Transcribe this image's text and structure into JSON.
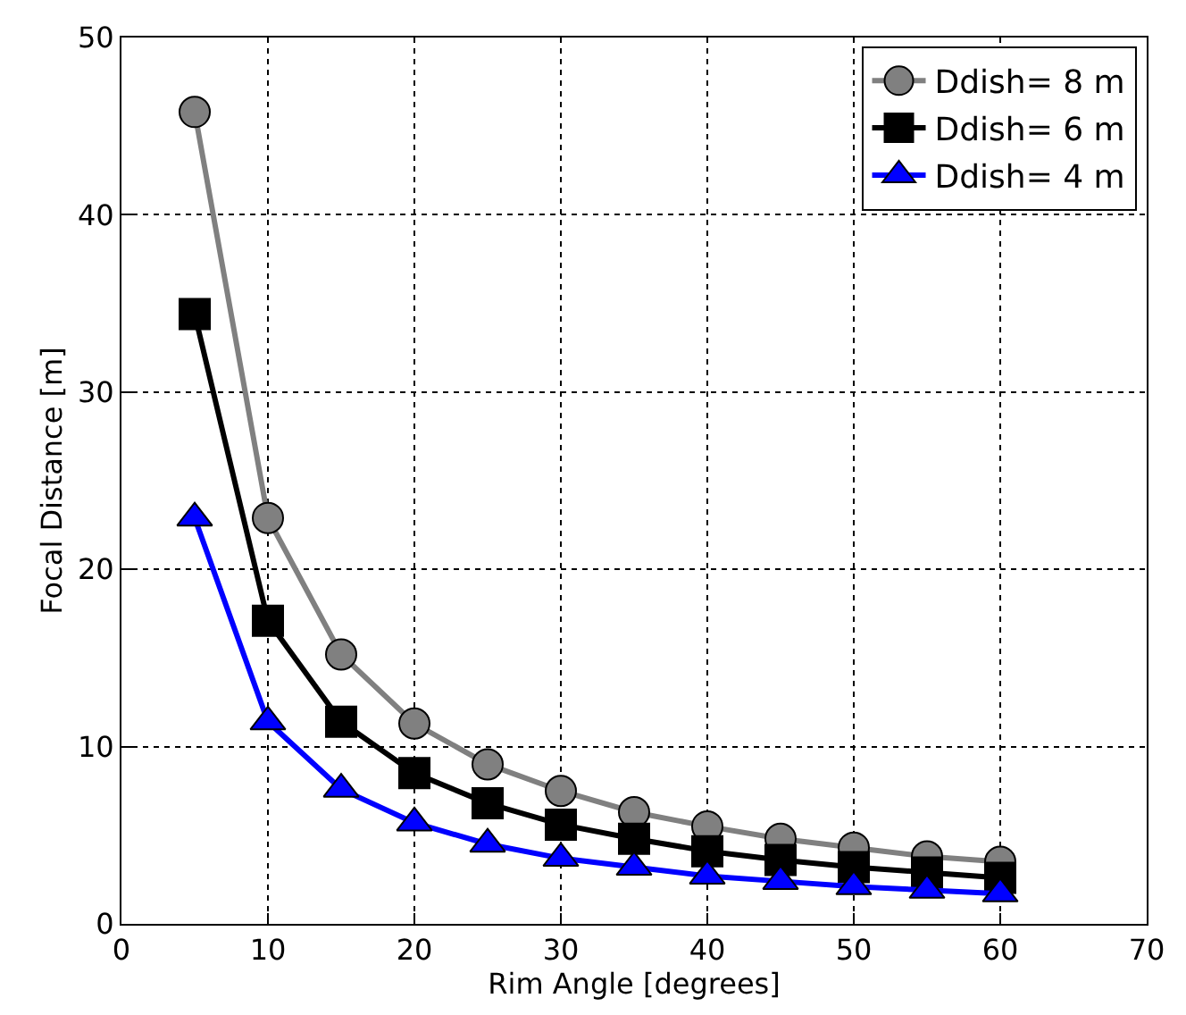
{
  "chart_data": {
    "type": "line",
    "xlabel": "Rim Angle [degrees]",
    "ylabel": "Focal Distance [m]",
    "x": [
      5,
      10,
      15,
      20,
      25,
      30,
      35,
      40,
      45,
      50,
      55,
      60
    ],
    "series": [
      {
        "name": "Ddish= 8 m",
        "color": "#808080",
        "marker": "circle",
        "values": [
          45.8,
          22.9,
          15.2,
          11.3,
          9.0,
          7.5,
          6.3,
          5.5,
          4.8,
          4.3,
          3.8,
          3.5
        ]
      },
      {
        "name": "Ddish= 6 m",
        "color": "#000000",
        "marker": "square",
        "values": [
          34.4,
          17.1,
          11.4,
          8.5,
          6.8,
          5.6,
          4.8,
          4.1,
          3.6,
          3.2,
          2.9,
          2.6
        ]
      },
      {
        "name": "Ddish= 4 m",
        "color": "#0000ff",
        "marker": "triangle",
        "values": [
          22.9,
          11.4,
          7.6,
          5.7,
          4.5,
          3.7,
          3.2,
          2.7,
          2.4,
          2.1,
          1.9,
          1.7
        ]
      }
    ],
    "xlim": [
      0,
      70
    ],
    "xticks": [
      0,
      10,
      20,
      30,
      40,
      50,
      60,
      70
    ],
    "ylim": [
      0,
      50
    ],
    "yticks": [
      0,
      10,
      20,
      30,
      40,
      50
    ],
    "grid": true,
    "legend": "top right",
    "line_style": "solid"
  }
}
